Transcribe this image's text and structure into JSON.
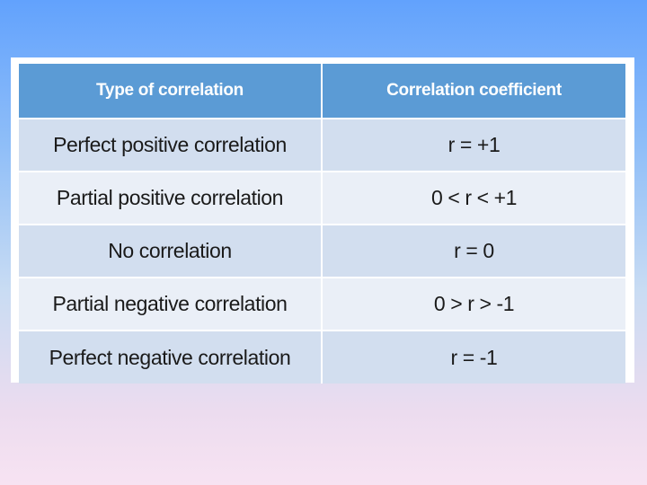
{
  "table": {
    "headers": [
      "Type of correlation",
      "Correlation coefficient"
    ],
    "rows": [
      [
        "Perfect positive correlation",
        "r = +1"
      ],
      [
        "Partial positive correlation",
        "0 < r < +1"
      ],
      [
        "No correlation",
        "r = 0"
      ],
      [
        "Partial negative correlation",
        "0 >  r > -1"
      ],
      [
        "Perfect negative correlation",
        "r = -1"
      ]
    ]
  },
  "colors": {
    "header_bg": "#5b9bd5",
    "row_dark": "#d2deef",
    "row_light": "#eaeff7",
    "background_top": "#62a2fd",
    "background_bottom": "#f7e3f2"
  }
}
